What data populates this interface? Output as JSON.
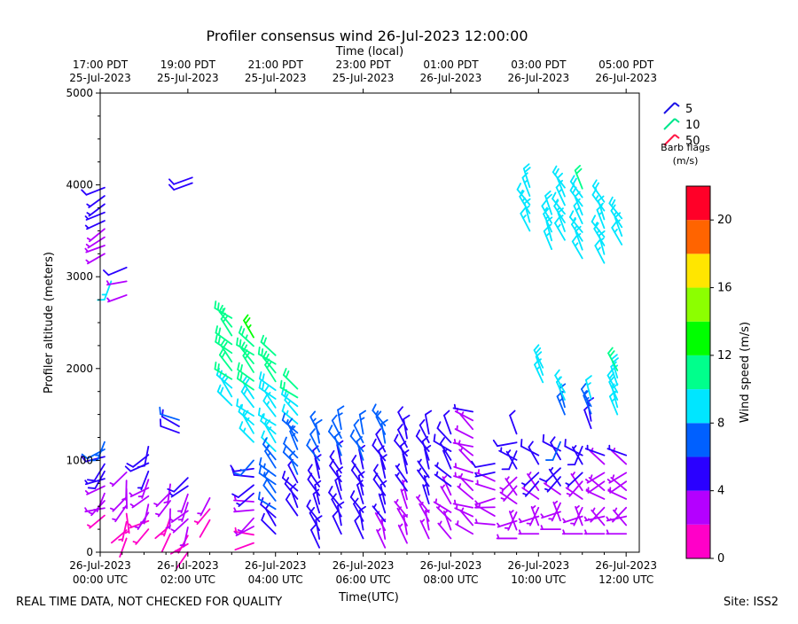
{
  "chart_data": {
    "type": "wind-barb-timeseries",
    "title": "Profiler consensus wind 26-Jul-2023 12:00:00",
    "xlabel_bottom": "Time(UTC)",
    "xlabel_top": "Time (local)",
    "ylabel": "Profiler altitude (meters)",
    "ylim": [
      0,
      5000
    ],
    "xlim_hours": [
      0,
      12.3
    ],
    "y_ticks": [
      0,
      1000,
      2000,
      3000,
      4000,
      5000
    ],
    "y_tick_labels": [
      "0",
      "1000",
      "2000",
      "3000",
      "4000",
      "5000"
    ],
    "bottom_ticks": [
      {
        "hour": 0,
        "line1": "26-Jul-2023",
        "line2": "00:00 UTC"
      },
      {
        "hour": 2,
        "line1": "26-Jul-2023",
        "line2": "02:00 UTC"
      },
      {
        "hour": 4,
        "line1": "26-Jul-2023",
        "line2": "04:00 UTC"
      },
      {
        "hour": 6,
        "line1": "26-Jul-2023",
        "line2": "06:00 UTC"
      },
      {
        "hour": 8,
        "line1": "26-Jul-2023",
        "line2": "08:00 UTC"
      },
      {
        "hour": 10,
        "line1": "26-Jul-2023",
        "line2": "10:00 UTC"
      },
      {
        "hour": 12,
        "line1": "26-Jul-2023",
        "line2": "12:00 UTC"
      }
    ],
    "top_ticks": [
      {
        "hour": 0,
        "line1": "17:00 PDT",
        "line2": "25-Jul-2023"
      },
      {
        "hour": 2,
        "line1": "19:00 PDT",
        "line2": "25-Jul-2023"
      },
      {
        "hour": 4,
        "line1": "21:00 PDT",
        "line2": "25-Jul-2023"
      },
      {
        "hour": 6,
        "line1": "23:00 PDT",
        "line2": "25-Jul-2023"
      },
      {
        "hour": 8,
        "line1": "01:00 PDT",
        "line2": "26-Jul-2023"
      },
      {
        "hour": 10,
        "line1": "03:00 PDT",
        "line2": "26-Jul-2023"
      },
      {
        "hour": 12,
        "line1": "05:00 PDT",
        "line2": "26-Jul-2023"
      }
    ],
    "legend": {
      "title_line1": "Barb flags",
      "title_line2": "(m/s)",
      "entries": [
        {
          "label": "5",
          "color": "#1a10e6"
        },
        {
          "label": "10",
          "color": "#00e68c"
        },
        {
          "label": "50",
          "color": "#ff1744"
        }
      ]
    },
    "colorbar": {
      "label": "Wind speed (m/s)",
      "range": [
        0,
        22
      ],
      "bins": [
        {
          "from": 0,
          "to": 2,
          "color": "#ff00c8"
        },
        {
          "from": 2,
          "to": 4,
          "color": "#b400ff"
        },
        {
          "from": 4,
          "to": 6,
          "color": "#2a00ff"
        },
        {
          "from": 6,
          "to": 8,
          "color": "#0060ff"
        },
        {
          "from": 8,
          "to": 10,
          "color": "#00e6ff"
        },
        {
          "from": 10,
          "to": 12,
          "color": "#00ff8c"
        },
        {
          "from": 12,
          "to": 14,
          "color": "#00ff00"
        },
        {
          "from": 14,
          "to": 16,
          "color": "#8cff00"
        },
        {
          "from": 16,
          "to": 18,
          "color": "#ffe600"
        },
        {
          "from": 18,
          "to": 20,
          "color": "#ff6400"
        },
        {
          "from": 20,
          "to": 22,
          "color": "#ff0028"
        }
      ],
      "ticks": [
        0,
        4,
        8,
        12,
        16,
        20
      ],
      "tick_labels": [
        "0",
        "4",
        "8",
        "12",
        "16",
        "20"
      ]
    },
    "barb_groups": [
      {
        "t": 0.1,
        "alt_from": 3250,
        "alt_to": 4000,
        "step": 90,
        "spd": [
          3.5,
          4.5
        ],
        "dir": [
          230,
          250
        ]
      },
      {
        "t": 0.25,
        "alt_from": 2950,
        "alt_to": 3000,
        "step": 60,
        "spd": [
          8,
          9
        ],
        "dir": [
          200,
          200
        ]
      },
      {
        "t": 0.6,
        "alt_from": 2800,
        "alt_to": 3100,
        "step": 150,
        "spd": [
          3,
          4.5
        ],
        "dir": [
          240,
          260
        ]
      },
      {
        "t": 2.1,
        "alt_from": 4020,
        "alt_to": 4080,
        "step": 60,
        "spd": [
          4.5,
          5
        ],
        "dir": [
          250,
          250
        ]
      },
      {
        "t": 0.1,
        "alt_from": 400,
        "alt_to": 1200,
        "step": 80,
        "spd": [
          1.5,
          6.5
        ],
        "dir": [
          200,
          260
        ]
      },
      {
        "t": 0.6,
        "alt_from": 150,
        "alt_to": 950,
        "step": 90,
        "spd": [
          1,
          3
        ],
        "dir": [
          170,
          230
        ]
      },
      {
        "t": 1.1,
        "alt_from": 250,
        "alt_to": 1150,
        "step": 90,
        "spd": [
          1.5,
          5.5
        ],
        "dir": [
          190,
          250
        ]
      },
      {
        "t": 1.6,
        "alt_from": 200,
        "alt_to": 800,
        "step": 90,
        "spd": [
          1,
          3
        ],
        "dir": [
          180,
          230
        ]
      },
      {
        "t": 1.8,
        "alt_from": 1300,
        "alt_to": 1450,
        "step": 70,
        "spd": [
          5,
          6
        ],
        "dir": [
          280,
          300
        ]
      },
      {
        "t": 2.0,
        "alt_from": 0,
        "alt_to": 850,
        "step": 90,
        "spd": [
          1,
          4.5
        ],
        "dir": [
          190,
          240
        ]
      },
      {
        "t": 2.5,
        "alt_from": 350,
        "alt_to": 600,
        "step": 120,
        "spd": [
          1,
          2
        ],
        "dir": [
          200,
          220
        ]
      },
      {
        "t": 3.0,
        "alt_from": 1600,
        "alt_to": 2550,
        "step": 95,
        "spd": [
          9.5,
          11.5
        ],
        "dir": [
          300,
          330
        ]
      },
      {
        "t": 3.5,
        "alt_from": 1200,
        "alt_to": 2400,
        "step": 95,
        "spd": [
          8.5,
          12
        ],
        "dir": [
          300,
          330
        ]
      },
      {
        "t": 4.0,
        "alt_from": 1100,
        "alt_to": 2200,
        "step": 95,
        "spd": [
          8,
          11
        ],
        "dir": [
          300,
          330
        ]
      },
      {
        "t": 4.5,
        "alt_from": 1400,
        "alt_to": 1850,
        "step": 95,
        "spd": [
          9,
          10.5
        ],
        "dir": [
          300,
          320
        ]
      },
      {
        "t": 3.5,
        "alt_from": 100,
        "alt_to": 1000,
        "step": 90,
        "spd": [
          1,
          6.5
        ],
        "dir": [
          220,
          280
        ]
      },
      {
        "t": 4.0,
        "alt_from": 200,
        "alt_to": 1050,
        "step": 90,
        "spd": [
          5.5,
          7
        ],
        "dir": [
          300,
          330
        ]
      },
      {
        "t": 4.5,
        "alt_from": 400,
        "alt_to": 1300,
        "step": 90,
        "spd": [
          5,
          7
        ],
        "dir": [
          310,
          340
        ]
      },
      {
        "t": 5.0,
        "alt_from": 50,
        "alt_to": 1350,
        "step": 95,
        "spd": [
          4.5,
          6.5
        ],
        "dir": [
          320,
          350
        ]
      },
      {
        "t": 5.5,
        "alt_from": 200,
        "alt_to": 1350,
        "step": 95,
        "spd": [
          4.5,
          6.5
        ],
        "dir": [
          320,
          350
        ]
      },
      {
        "t": 6.0,
        "alt_from": 150,
        "alt_to": 1350,
        "step": 95,
        "spd": [
          4.5,
          6.5
        ],
        "dir": [
          320,
          350
        ]
      },
      {
        "t": 6.5,
        "alt_from": 50,
        "alt_to": 1400,
        "step": 95,
        "spd": [
          3.5,
          6.5
        ],
        "dir": [
          320,
          350
        ]
      },
      {
        "t": 7.0,
        "alt_from": 100,
        "alt_to": 1350,
        "step": 95,
        "spd": [
          3,
          5.5
        ],
        "dir": [
          320,
          350
        ]
      },
      {
        "t": 7.5,
        "alt_from": 150,
        "alt_to": 1300,
        "step": 95,
        "spd": [
          3.5,
          5
        ],
        "dir": [
          320,
          350
        ]
      },
      {
        "t": 8.0,
        "alt_from": 150,
        "alt_to": 1300,
        "step": 95,
        "spd": [
          3,
          5
        ],
        "dir": [
          300,
          340
        ]
      },
      {
        "t": 8.5,
        "alt_from": 200,
        "alt_to": 1550,
        "step": 95,
        "spd": [
          2,
          4
        ],
        "dir": [
          280,
          320
        ]
      },
      {
        "t": 9.0,
        "alt_from": 300,
        "alt_to": 1000,
        "step": 95,
        "spd": [
          2,
          4.5
        ],
        "dir": [
          250,
          300
        ]
      },
      {
        "t": 9.5,
        "alt_from": 150,
        "alt_to": 1300,
        "step": 95,
        "spd": [
          2,
          5
        ],
        "dir": [
          200,
          340
        ]
      },
      {
        "t": 10.0,
        "alt_from": 200,
        "alt_to": 1100,
        "step": 95,
        "spd": [
          2,
          5
        ],
        "dir": [
          200,
          340
        ]
      },
      {
        "t": 10.5,
        "alt_from": 250,
        "alt_to": 1200,
        "step": 95,
        "spd": [
          2,
          6
        ],
        "dir": [
          200,
          340
        ]
      },
      {
        "t": 11.0,
        "alt_from": 200,
        "alt_to": 1200,
        "step": 95,
        "spd": [
          2,
          5
        ],
        "dir": [
          200,
          340
        ]
      },
      {
        "t": 11.5,
        "alt_from": 200,
        "alt_to": 1100,
        "step": 95,
        "spd": [
          2,
          4
        ],
        "dir": [
          220,
          320
        ]
      },
      {
        "t": 12.0,
        "alt_from": 200,
        "alt_to": 1100,
        "step": 95,
        "spd": [
          2,
          4
        ],
        "dir": [
          220,
          320
        ]
      },
      {
        "t": 10.1,
        "alt_from": 1850,
        "alt_to": 2050,
        "step": 80,
        "spd": [
          8.5,
          9.5
        ],
        "dir": [
          330,
          340
        ]
      },
      {
        "t": 10.6,
        "alt_from": 1500,
        "alt_to": 1800,
        "step": 80,
        "spd": [
          7,
          9
        ],
        "dir": [
          330,
          345
        ]
      },
      {
        "t": 11.2,
        "alt_from": 1350,
        "alt_to": 1700,
        "step": 80,
        "spd": [
          5,
          8
        ],
        "dir": [
          330,
          350
        ]
      },
      {
        "t": 11.8,
        "alt_from": 1500,
        "alt_to": 2000,
        "step": 80,
        "spd": [
          9,
          10
        ],
        "dir": [
          330,
          345
        ]
      },
      {
        "t": 9.8,
        "alt_from": 3500,
        "alt_to": 4050,
        "step": 95,
        "spd": [
          8.5,
          9.5
        ],
        "dir": [
          320,
          345
        ]
      },
      {
        "t": 10.3,
        "alt_from": 3300,
        "alt_to": 3700,
        "step": 95,
        "spd": [
          8.5,
          9.5
        ],
        "dir": [
          330,
          345
        ]
      },
      {
        "t": 10.6,
        "alt_from": 3400,
        "alt_to": 4000,
        "step": 95,
        "spd": [
          8.5,
          9.5
        ],
        "dir": [
          320,
          340
        ]
      },
      {
        "t": 11.0,
        "alt_from": 3200,
        "alt_to": 4050,
        "step": 95,
        "spd": [
          8.5,
          10
        ],
        "dir": [
          320,
          340
        ]
      },
      {
        "t": 11.5,
        "alt_from": 3150,
        "alt_to": 3900,
        "step": 95,
        "spd": [
          8.5,
          9.5
        ],
        "dir": [
          320,
          345
        ]
      },
      {
        "t": 11.9,
        "alt_from": 3350,
        "alt_to": 3650,
        "step": 95,
        "spd": [
          8.5,
          9.5
        ],
        "dir": [
          320,
          340
        ]
      }
    ]
  },
  "footer": {
    "left": "REAL TIME DATA, NOT CHECKED FOR QUALITY",
    "right": "Site: ISS2"
  }
}
